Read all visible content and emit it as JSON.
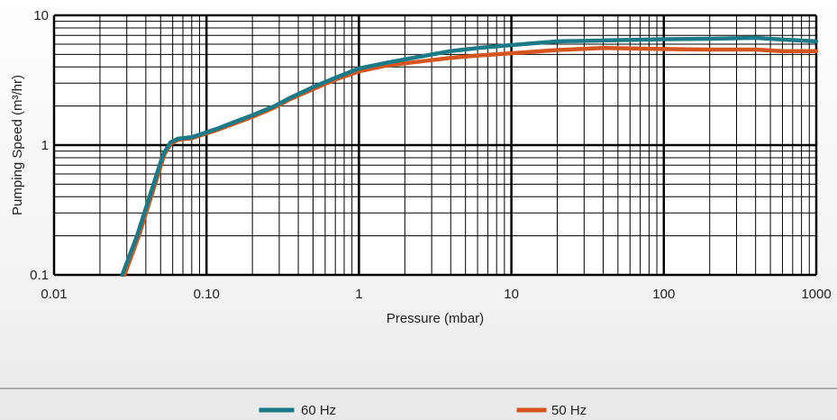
{
  "chart_data": {
    "type": "line",
    "xlabel": "Pressure (mbar)",
    "ylabel": "Pumping Speed (m³/hr)",
    "x_scale": "log",
    "y_scale": "log",
    "xlim": [
      0.01,
      1000
    ],
    "ylim": [
      0.1,
      10
    ],
    "x_ticks": [
      "0.01",
      "0.10",
      "1",
      "10",
      "100",
      "1000"
    ],
    "y_ticks": [
      "0.1",
      "1",
      "10"
    ],
    "grid": true,
    "legend_position": "bottom",
    "series": [
      {
        "name": "60 Hz",
        "color": "#1a7a86",
        "x": [
          0.028,
          0.035,
          0.045,
          0.052,
          0.058,
          0.065,
          0.08,
          0.12,
          0.2,
          0.28,
          0.35,
          0.5,
          0.7,
          1.0,
          1.5,
          2.5,
          4,
          6,
          10,
          20,
          40,
          100,
          200,
          400,
          600,
          1000
        ],
        "y": [
          0.1,
          0.2,
          0.5,
          0.85,
          1.05,
          1.12,
          1.15,
          1.35,
          1.7,
          2.0,
          2.3,
          2.8,
          3.3,
          3.9,
          4.3,
          4.8,
          5.3,
          5.6,
          5.9,
          6.3,
          6.4,
          6.55,
          6.6,
          6.7,
          6.5,
          6.3
        ]
      },
      {
        "name": "50 Hz",
        "color": "#d4561e",
        "x": [
          0.029,
          0.036,
          0.046,
          0.053,
          0.058,
          0.065,
          0.08,
          0.12,
          0.2,
          0.28,
          0.35,
          0.5,
          0.7,
          1.0,
          1.5,
          2.5,
          4,
          6,
          10,
          20,
          40,
          100,
          200,
          400,
          600,
          1000
        ],
        "y": [
          0.1,
          0.2,
          0.5,
          0.85,
          1.02,
          1.1,
          1.13,
          1.32,
          1.65,
          1.95,
          2.25,
          2.7,
          3.2,
          3.7,
          4.1,
          4.4,
          4.7,
          4.9,
          5.1,
          5.4,
          5.6,
          5.5,
          5.45,
          5.45,
          5.3,
          5.3
        ]
      }
    ]
  }
}
